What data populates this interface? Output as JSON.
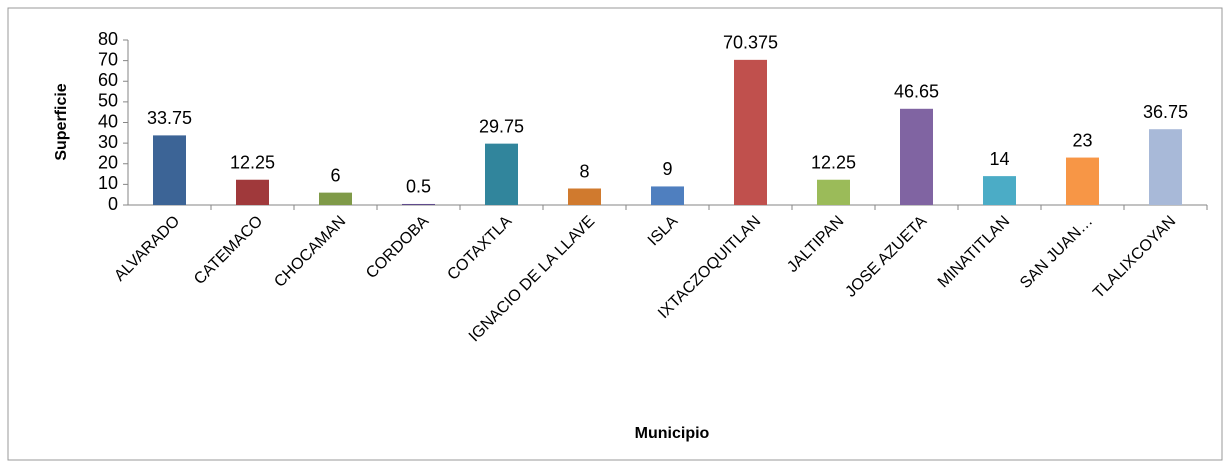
{
  "chart_data": {
    "type": "bar",
    "categories": [
      "ALVARADO",
      "CATEMACO",
      "CHOCAMAN",
      "CORDOBA",
      "COTAXTLA",
      "IGNACIO DE LA LLAVE",
      "ISLA",
      "IXTACZOQUITLAN",
      "JALTIPAN",
      "JOSE AZUETA",
      "MINATITLAN",
      "SAN JUAN…",
      "TLALIXCOYAN"
    ],
    "values": [
      33.75,
      12.25,
      6,
      0.5,
      29.75,
      8,
      9,
      70.375,
      12.25,
      46.65,
      14,
      23,
      36.75
    ],
    "colors": [
      "#3c6496",
      "#a0393b",
      "#7f9a48",
      "#5f4b8b",
      "#31859c",
      "#d07a2e",
      "#4f7fbf",
      "#c0504d",
      "#9bbb59",
      "#8064a2",
      "#4bacc6",
      "#f79646",
      "#a8b9d8"
    ],
    "xlabel": "Municipio",
    "ylabel": "Superficie",
    "ylim": [
      0,
      80
    ],
    "yticks": [
      0,
      10,
      20,
      30,
      40,
      50,
      60,
      70,
      80
    ],
    "grid": false
  }
}
